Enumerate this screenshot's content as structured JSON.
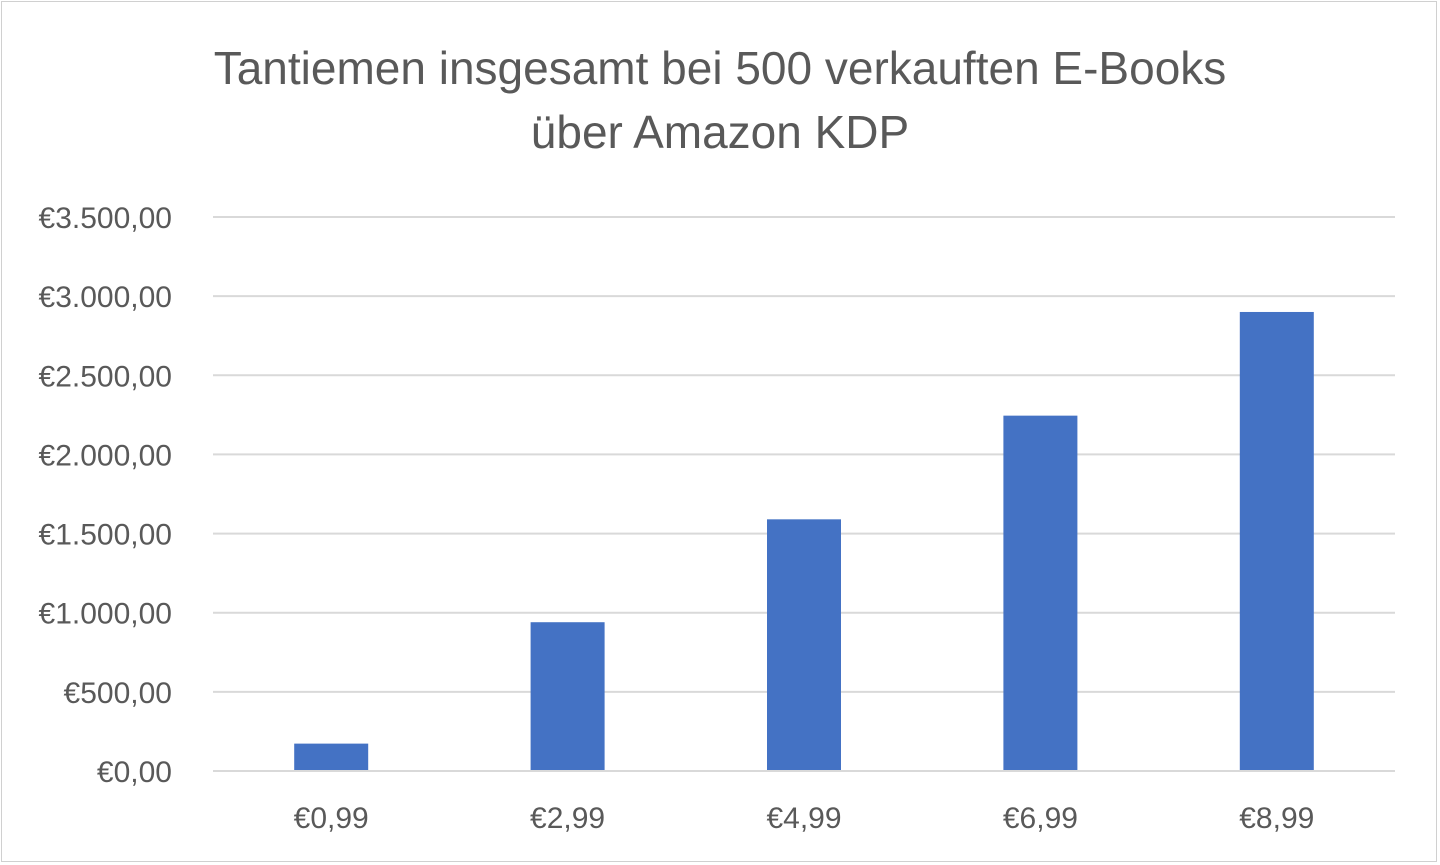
{
  "chart_data": {
    "type": "bar",
    "title_lines": [
      "Tantiemen insgesamt bei 500 verkauften E-Books",
      "über Amazon KDP"
    ],
    "categories": [
      "€0,99",
      "€2,99",
      "€4,99",
      "€6,99",
      "€8,99"
    ],
    "values": [
      173,
      940,
      1590,
      2245,
      2900
    ],
    "ylim": [
      0,
      3500
    ],
    "yticks": [
      0,
      500,
      1000,
      1500,
      2000,
      2500,
      3000,
      3500
    ],
    "ytick_labels": [
      "€0,00",
      "€500,00",
      "€1.000,00",
      "€1.500,00",
      "€2.000,00",
      "€2.500,00",
      "€3.000,00",
      "€3.500,00"
    ],
    "xlabel": "",
    "ylabel": "",
    "grid": true,
    "legend": "none",
    "bar_color": "#4472C4",
    "grid_color": "#D9D9D9",
    "text_color": "#595959"
  }
}
